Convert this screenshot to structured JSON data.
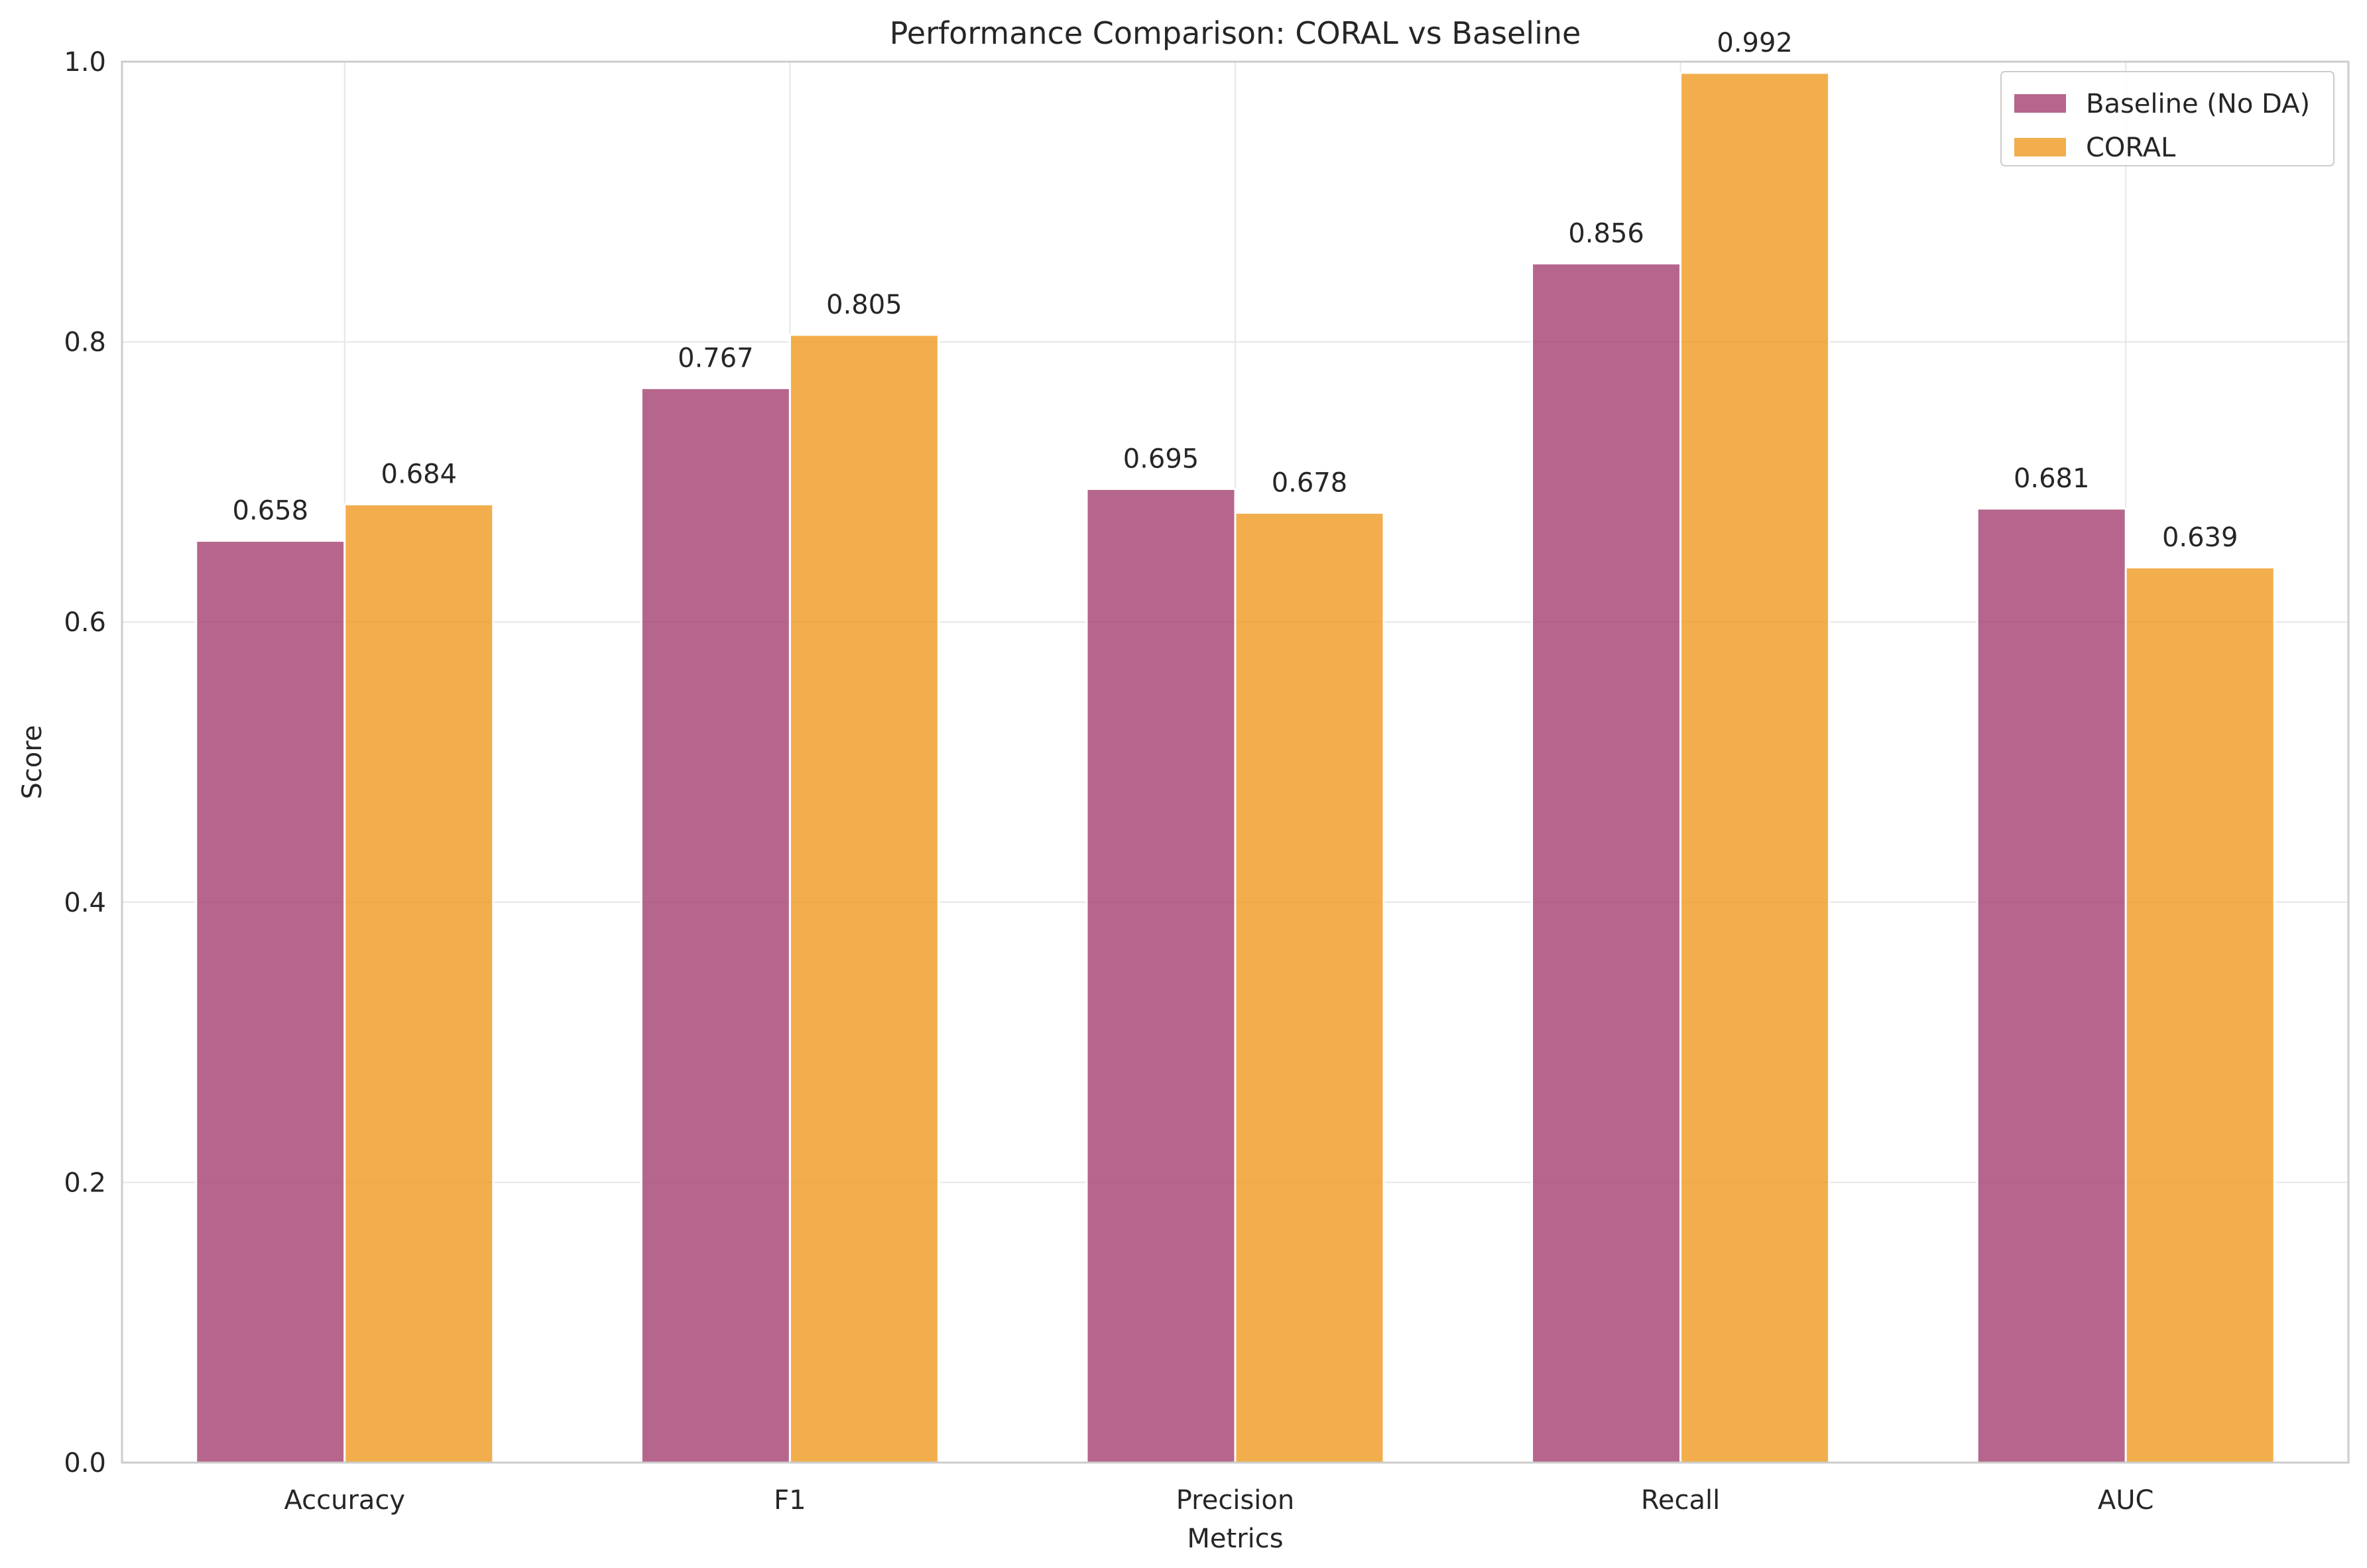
{
  "chart_data": {
    "type": "bar",
    "title": "Performance Comparison: CORAL vs Baseline",
    "xlabel": "Metrics",
    "ylabel": "Score",
    "categories": [
      "Accuracy",
      "F1",
      "Precision",
      "Recall",
      "AUC"
    ],
    "series": [
      {
        "name": "Baseline (No DA)",
        "color": "#a4406f",
        "values": [
          0.658,
          0.767,
          0.695,
          0.856,
          0.681
        ],
        "labels": [
          "0.658",
          "0.767",
          "0.695",
          "0.856",
          "0.681"
        ]
      },
      {
        "name": "CORAL",
        "color": "#ef9a1f",
        "values": [
          0.684,
          0.805,
          0.678,
          0.992,
          0.639
        ],
        "labels": [
          "0.684",
          "0.805",
          "0.678",
          "0.992",
          "0.639"
        ]
      }
    ],
    "ylim": [
      0,
      1.0
    ],
    "yticks": [
      0.0,
      0.2,
      0.4,
      0.6,
      0.8,
      1.0
    ],
    "ytick_labels": [
      "0.0",
      "0.2",
      "0.4",
      "0.6",
      "0.8",
      "1.0"
    ],
    "grid": true,
    "legend": "top-right"
  }
}
